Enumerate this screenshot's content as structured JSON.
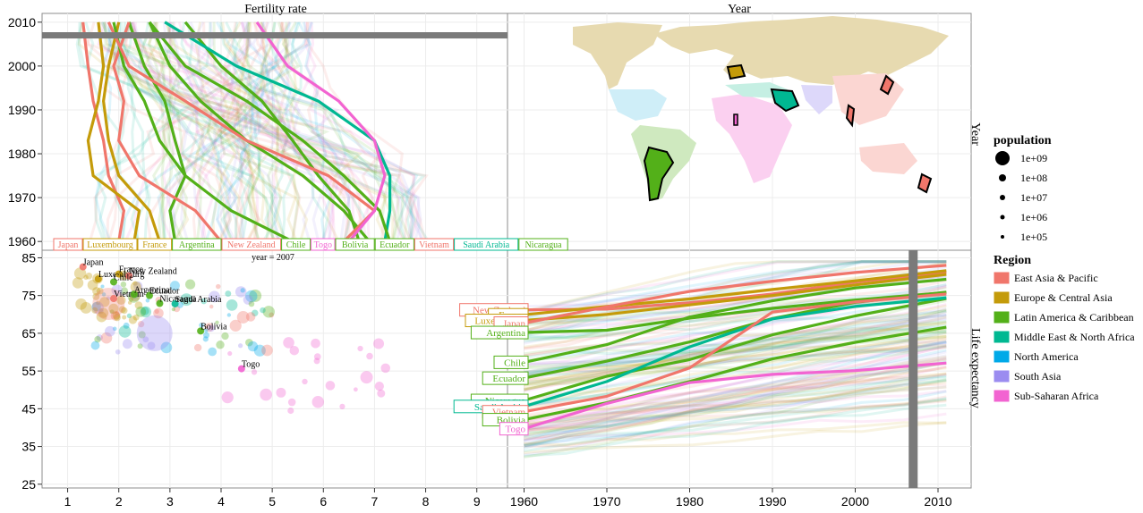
{
  "titles": {
    "fertility": "Fertility rate",
    "year": "Year",
    "right_year": "Year",
    "right_life": "Life expectancy",
    "year_label": "year = 2007"
  },
  "colors": {
    "East Asia & Pacific": "#f0766b",
    "Europe & Central Asia": "#c49b0a",
    "Latin America & Caribbean": "#53b019",
    "Middle East & North Africa": "#00b892",
    "North America": "#00a9e8",
    "South Asia": "#9b8cf0",
    "Sub-Saharan Africa": "#f264d1"
  },
  "chart_data": [
    {
      "type": "line",
      "panel": "fertility-vs-year",
      "xlabel": "Fertility rate",
      "ylabel": "Year",
      "xlim": [
        0.5,
        9.6
      ],
      "ylim": [
        1958,
        2012
      ],
      "x_ticks": [
        "1",
        "2",
        "3",
        "4",
        "5",
        "6",
        "7",
        "8",
        "9"
      ],
      "y_ticks": [
        "1960",
        "1970",
        "1980",
        "1990",
        "2000",
        "2010"
      ],
      "selected_year": 2007,
      "series": [
        {
          "name": "Japan",
          "region": "East Asia & Pacific",
          "x": [
            2.0,
            2.1,
            1.8,
            1.7,
            1.5,
            1.4,
            1.3
          ],
          "y": [
            1960,
            1967,
            1975,
            1983,
            1992,
            2000,
            2010
          ]
        },
        {
          "name": "Luxembourg",
          "region": "Europe & Central Asia",
          "x": [
            2.3,
            2.4,
            1.5,
            1.4,
            1.6,
            1.7,
            1.6
          ],
          "y": [
            1960,
            1967,
            1975,
            1983,
            1992,
            2000,
            2010
          ]
        },
        {
          "name": "France",
          "region": "Europe & Central Asia",
          "x": [
            2.8,
            2.6,
            2.0,
            1.8,
            1.7,
            1.8,
            2.0
          ],
          "y": [
            1960,
            1967,
            1975,
            1983,
            1992,
            2000,
            2010
          ]
        },
        {
          "name": "Argentina",
          "region": "Latin America & Caribbean",
          "x": [
            3.1,
            3.0,
            3.3,
            3.1,
            2.9,
            2.5,
            2.2
          ],
          "y": [
            1960,
            1967,
            1975,
            1983,
            1992,
            2000,
            2010
          ]
        },
        {
          "name": "New Zealand",
          "region": "East Asia & Pacific",
          "x": [
            4.0,
            3.5,
            2.4,
            2.0,
            2.1,
            1.9,
            2.2
          ],
          "y": [
            1960,
            1967,
            1975,
            1983,
            1992,
            2000,
            2010
          ]
        },
        {
          "name": "Chile",
          "region": "Latin America & Caribbean",
          "x": [
            5.4,
            4.2,
            3.3,
            2.8,
            2.5,
            2.1,
            1.9
          ],
          "y": [
            1960,
            1967,
            1975,
            1983,
            1992,
            2000,
            2010
          ]
        },
        {
          "name": "Bolivia",
          "region": "Latin America & Caribbean",
          "x": [
            6.7,
            6.5,
            5.9,
            5.4,
            4.8,
            4.0,
            3.3
          ],
          "y": [
            1960,
            1967,
            1975,
            1983,
            1992,
            2000,
            2010
          ]
        },
        {
          "name": "Ecuador",
          "region": "Latin America & Caribbean",
          "x": [
            6.9,
            6.4,
            5.6,
            4.5,
            3.6,
            3.0,
            2.6
          ],
          "y": [
            1960,
            1967,
            1975,
            1983,
            1992,
            2000,
            2010
          ]
        },
        {
          "name": "Vietnam",
          "region": "East Asia & Pacific",
          "x": [
            6.4,
            7.0,
            6.1,
            4.5,
            3.3,
            2.2,
            1.8
          ],
          "y": [
            1960,
            1967,
            1975,
            1983,
            1992,
            2000,
            2010
          ]
        },
        {
          "name": "Saudi Arabia",
          "region": "Middle East & North Africa",
          "x": [
            7.2,
            7.3,
            7.3,
            7.0,
            5.9,
            4.3,
            2.9
          ],
          "y": [
            1960,
            1967,
            1975,
            1983,
            1992,
            2000,
            2010
          ]
        },
        {
          "name": "Nicaragua",
          "region": "Latin America & Caribbean",
          "x": [
            7.3,
            7.1,
            6.4,
            5.6,
            4.5,
            3.3,
            2.6
          ],
          "y": [
            1960,
            1967,
            1975,
            1983,
            1992,
            2000,
            2010
          ]
        },
        {
          "name": "Togo",
          "region": "Sub-Saharan Africa",
          "x": [
            6.5,
            7.0,
            7.2,
            7.0,
            6.3,
            5.3,
            4.7
          ],
          "y": [
            1960,
            1967,
            1975,
            1983,
            1992,
            2000,
            2010
          ]
        }
      ],
      "label_bar": [
        "Japan",
        "Luxembourg",
        "France",
        "Argentina",
        "New Zealand",
        "Chile",
        "Togo",
        "Bolivia",
        "Ecuador",
        "Vietnam",
        "Saudi Arabia",
        "Nicaragua"
      ]
    },
    {
      "type": "scatter",
      "panel": "life-vs-fertility",
      "xlabel": "Fertility rate",
      "ylabel": "Life expectancy",
      "xlim": [
        0.5,
        9.6
      ],
      "ylim": [
        24,
        87
      ],
      "x_ticks": [
        "1",
        "2",
        "3",
        "4",
        "5",
        "6",
        "7",
        "8",
        "9"
      ],
      "y_ticks": [
        "25",
        "35",
        "45",
        "55",
        "65",
        "75",
        "85"
      ],
      "year": 2007,
      "labeled_points": [
        {
          "name": "Japan",
          "x": 1.3,
          "y": 82.6
        },
        {
          "name": "Luxembourg",
          "x": 1.6,
          "y": 79.4
        },
        {
          "name": "New Zealand",
          "x": 2.2,
          "y": 80.2
        },
        {
          "name": "France",
          "x": 2.0,
          "y": 80.7
        },
        {
          "name": "Chile",
          "x": 1.9,
          "y": 78.6
        },
        {
          "name": "Vietnam",
          "x": 1.9,
          "y": 74.2
        },
        {
          "name": "Argentina",
          "x": 2.3,
          "y": 75.3
        },
        {
          "name": "Ecuador",
          "x": 2.6,
          "y": 75.0
        },
        {
          "name": "Nicaragua",
          "x": 2.8,
          "y": 72.9
        },
        {
          "name": "Saudi Arabia",
          "x": 3.1,
          "y": 72.8
        },
        {
          "name": "Bolivia",
          "x": 3.6,
          "y": 65.6
        },
        {
          "name": "Togo",
          "x": 4.4,
          "y": 55.6
        }
      ]
    },
    {
      "type": "line",
      "panel": "life-vs-year",
      "xlabel": "Year",
      "ylabel": "Life expectancy",
      "xlim": [
        1958,
        2014
      ],
      "ylim": [
        24,
        87
      ],
      "x_ticks": [
        "1960",
        "1970",
        "1980",
        "1990",
        "2000",
        "2010"
      ],
      "selected_year": 2007,
      "series": [
        {
          "name": "New Zealand",
          "region": "East Asia & Pacific",
          "x": [
            1960,
            1970,
            1980,
            1990,
            2000,
            2011
          ],
          "y": [
            71.2,
            71.4,
            73.1,
            75.4,
            78.6,
            81.2
          ]
        },
        {
          "name": "France",
          "region": "Europe & Central Asia",
          "x": [
            1960,
            1970,
            1980,
            1990,
            2000,
            2011
          ],
          "y": [
            69.9,
            72.1,
            74.1,
            76.6,
            78.9,
            81.6
          ]
        },
        {
          "name": "Luxembourg",
          "region": "Europe & Central Asia",
          "x": [
            1960,
            1970,
            1980,
            1990,
            2000,
            2011
          ],
          "y": [
            68.4,
            70.0,
            72.5,
            75.0,
            77.8,
            80.6
          ]
        },
        {
          "name": "Japan",
          "region": "East Asia & Pacific",
          "x": [
            1960,
            1970,
            1980,
            1990,
            2000,
            2011
          ],
          "y": [
            67.7,
            72.0,
            76.1,
            78.8,
            81.1,
            83.0
          ]
        },
        {
          "name": "Argentina",
          "region": "Latin America & Caribbean",
          "x": [
            1960,
            1970,
            1980,
            1990,
            2000,
            2011
          ],
          "y": [
            65.2,
            65.8,
            69.0,
            71.6,
            73.8,
            75.8
          ]
        },
        {
          "name": "Chile",
          "region": "Latin America & Caribbean",
          "x": [
            1960,
            1970,
            1980,
            1990,
            2000,
            2011
          ],
          "y": [
            57.3,
            62.0,
            69.3,
            73.6,
            77.0,
            79.3
          ]
        },
        {
          "name": "Ecuador",
          "region": "Latin America & Caribbean",
          "x": [
            1960,
            1970,
            1980,
            1990,
            2000,
            2011
          ],
          "y": [
            53.1,
            57.6,
            62.7,
            68.9,
            73.2,
            75.9
          ]
        },
        {
          "name": "Nicaragua",
          "region": "Latin America & Caribbean",
          "x": [
            1960,
            1970,
            1980,
            1990,
            2000,
            2011
          ],
          "y": [
            47.2,
            53.6,
            58.0,
            64.6,
            69.6,
            74.2
          ]
        },
        {
          "name": "Saudi Arabia",
          "region": "Middle East & North Africa",
          "x": [
            1960,
            1970,
            1980,
            1990,
            2000,
            2011
          ],
          "y": [
            45.6,
            52.2,
            61.4,
            68.8,
            72.1,
            74.4
          ]
        },
        {
          "name": "Vietnam",
          "region": "East Asia & Pacific",
          "x": [
            1960,
            1970,
            1980,
            1990,
            2000,
            2011
          ],
          "y": [
            44.2,
            48.3,
            55.8,
            70.6,
            73.3,
            75.4
          ]
        },
        {
          "name": "Bolivia",
          "region": "Latin America & Caribbean",
          "x": [
            1960,
            1970,
            1980,
            1990,
            2000,
            2011
          ],
          "y": [
            42.1,
            46.6,
            52.2,
            58.2,
            62.6,
            66.6
          ]
        },
        {
          "name": "Togo",
          "region": "Sub-Saharan Africa",
          "x": [
            1960,
            1970,
            1980,
            1990,
            2000,
            2011
          ],
          "y": [
            39.7,
            46.4,
            51.9,
            54.1,
            55.1,
            57.1
          ]
        }
      ]
    }
  ],
  "map": {
    "title": "Year",
    "highlighted": [
      "Luxembourg",
      "France",
      "Saudi Arabia",
      "Japan",
      "Vietnam",
      "New Zealand",
      "Argentina",
      "Chile",
      "Bolivia",
      "Ecuador",
      "Nicaragua",
      "Togo"
    ]
  },
  "legend": {
    "size_title": "population",
    "size_items": [
      "1e+09",
      "1e+08",
      "1e+07",
      "1e+06",
      "1e+05"
    ],
    "region_title": "Region",
    "region_items": [
      "East Asia & Pacific",
      "Europe & Central Asia",
      "Latin America & Caribbean",
      "Middle East & North Africa",
      "North America",
      "South Asia",
      "Sub-Saharan Africa"
    ]
  }
}
